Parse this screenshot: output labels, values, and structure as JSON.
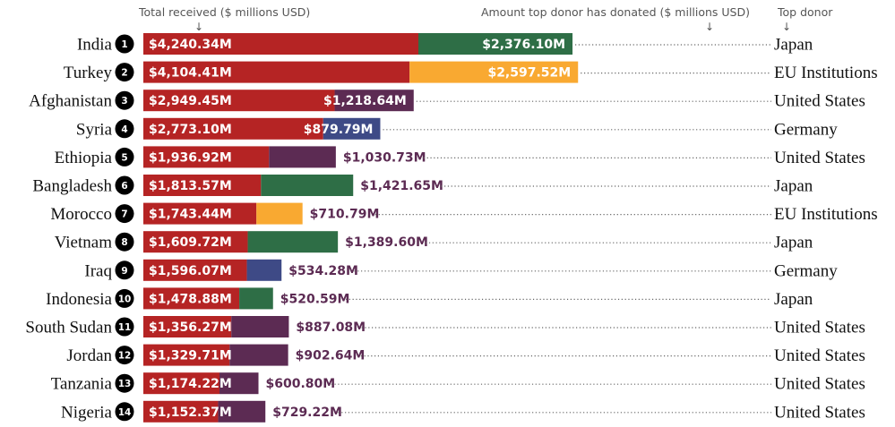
{
  "header": {
    "total_label": "Total received ($ millions USD)",
    "donor_amount_label": "Amount top donor has donated ($ millions USD)",
    "top_donor_label": "Top donor",
    "arrow": "↓"
  },
  "colors": {
    "total": "#b52424",
    "Japan": "#2e6e46",
    "EU Institutions": "#f9a931",
    "United States": "#5c2b53",
    "Germany": "#3e4a86",
    "outside_label": "#5c2b53"
  },
  "chart_data": {
    "type": "bar",
    "orientation": "horizontal",
    "units": "$ millions USD",
    "categories": [
      "India",
      "Turkey",
      "Afghanistan",
      "Syria",
      "Ethiopia",
      "Bangladesh",
      "Morocco",
      "Vietnam",
      "Iraq",
      "Indonesia",
      "South Sudan",
      "Jordan",
      "Tanzania",
      "Nigeria"
    ],
    "ranks": [
      "1",
      "2",
      "3",
      "4",
      "5",
      "6",
      "7",
      "8",
      "9",
      "10",
      "11",
      "12",
      "13",
      "14"
    ],
    "series": [
      {
        "name": "Total received ($ millions USD)",
        "values": [
          4240.34,
          4104.41,
          2949.45,
          2773.1,
          1936.92,
          1813.57,
          1743.44,
          1609.72,
          1596.07,
          1478.88,
          1356.27,
          1329.71,
          1174.22,
          1152.37
        ],
        "labels": [
          "$4,240.34M",
          "$4,104.41M",
          "$2,949.45M",
          "$2,773.10M",
          "$1,936.92M",
          "$1,813.57M",
          "$1,743.44M",
          "$1,609.72M",
          "$1,596.07M",
          "$1,478.88M",
          "$1,356.27M",
          "$1,329.71M",
          "$1,174.22M",
          "$1,152.37M"
        ]
      },
      {
        "name": "Amount top donor has donated ($ millions USD)",
        "values": [
          2376.1,
          2597.52,
          1218.64,
          879.79,
          1030.73,
          1421.65,
          710.79,
          1389.6,
          534.28,
          520.59,
          887.08,
          902.64,
          600.8,
          729.22
        ],
        "labels": [
          "$2,376.10M",
          "$2,597.52M",
          "$1,218.64M",
          "$879.79M",
          "$1,030.73M",
          "$1,421.65M",
          "$710.79M",
          "$1,389.60M",
          "$534.28M",
          "$520.59M",
          "$887.08M",
          "$902.64M",
          "$600.80M",
          "$729.22M"
        ]
      }
    ],
    "top_donor": [
      "Japan",
      "EU Institutions",
      "United States",
      "Germany",
      "United States",
      "Japan",
      "EU Institutions",
      "Japan",
      "Germany",
      "Japan",
      "United States",
      "United States",
      "United States",
      "United States"
    ],
    "label_inside_donor_segment": [
      true,
      true,
      true,
      true,
      false,
      false,
      false,
      false,
      false,
      false,
      false,
      false,
      false,
      false
    ]
  }
}
